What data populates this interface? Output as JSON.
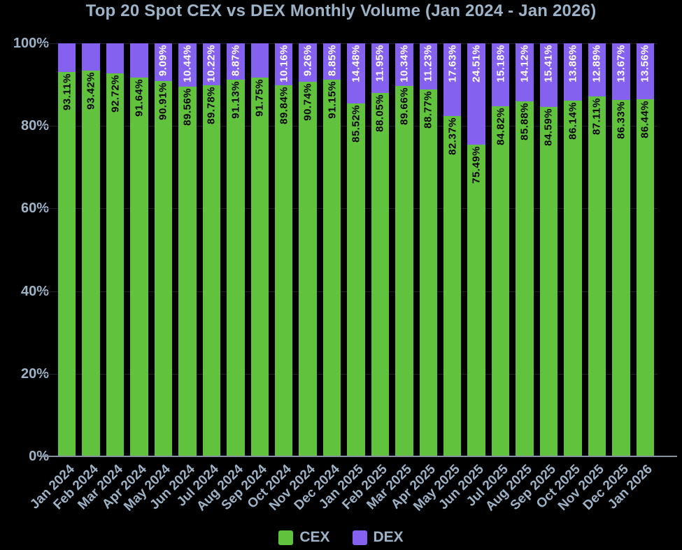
{
  "colors": {
    "background": "#000000",
    "cex_green": "#61c23e",
    "dex_purple": "#8561f0",
    "text": "#9db3c8",
    "axis_line": "#83929c",
    "grid_line": "#202325",
    "cex_label_text": "#000000",
    "dex_label_text": "#ffffff"
  },
  "chart_data": {
    "type": "bar",
    "stacked": true,
    "title": "Top 20 Spot CEX vs DEX Monthly Volume (Jan 2024 - Jan 2026)",
    "xlabel": "",
    "ylabel": "",
    "ylim": [
      0,
      100
    ],
    "ytick_labels": [
      "0%",
      "20%",
      "40%",
      "60%",
      "80%",
      "100%"
    ],
    "gridline_values": [
      20,
      40,
      60,
      80,
      100
    ],
    "legend_position": "bottom",
    "categories": [
      "Jan 2024",
      "Feb 2024",
      "Mar 2024",
      "Apr 2024",
      "May 2024",
      "Jun 2024",
      "Jul 2024",
      "Aug 2024",
      "Sep 2024",
      "Oct 2024",
      "Nov 2024",
      "Dec 2024",
      "Jan 2025",
      "Feb 2025",
      "Mar 2025",
      "Apr 2025",
      "May 2025",
      "Jun 2025",
      "Jul 2025",
      "Aug 2025",
      "Sep 2025",
      "Oct 2025",
      "Nov 2025",
      "Dec 2025",
      "Jan 2026"
    ],
    "series": [
      {
        "name": "CEX",
        "color": "#61c23e",
        "values": [
          93.11,
          93.42,
          92.72,
          91.64,
          90.91,
          89.56,
          89.78,
          91.13,
          91.75,
          89.84,
          90.74,
          91.15,
          85.52,
          88.05,
          89.66,
          88.77,
          82.37,
          75.49,
          84.82,
          85.88,
          84.59,
          86.14,
          87.11,
          86.33,
          86.44
        ],
        "labels": [
          "93.11%",
          "93.42%",
          "92.72%",
          "91.64%",
          "90.91%",
          "89.56%",
          "89.78%",
          "91.13%",
          "91.75%",
          "89.84%",
          "90.74%",
          "91.15%",
          "85.52%",
          "88.05%",
          "89.66%",
          "88.77%",
          "82.37%",
          "75.49%",
          "84.82%",
          "85.88%",
          "84.59%",
          "86.14%",
          "87.11%",
          "86.33%",
          "86.44%"
        ]
      },
      {
        "name": "DEX",
        "color": "#8561f0",
        "values": [
          6.89,
          6.58,
          7.28,
          8.36,
          9.09,
          10.44,
          10.22,
          8.87,
          8.25,
          10.16,
          9.26,
          8.85,
          14.48,
          11.95,
          10.34,
          11.23,
          17.63,
          24.51,
          15.18,
          14.12,
          15.41,
          13.86,
          12.89,
          13.67,
          13.56
        ],
        "labels": [
          "",
          "",
          "",
          "",
          "9.09%",
          "10.44%",
          "10.22%",
          "8.87%",
          "",
          "10.16%",
          "9.26%",
          "8.85%",
          "14.48%",
          "11.95%",
          "10.34%",
          "11.23%",
          "17.63%",
          "24.51%",
          "15.18%",
          "14.12%",
          "15.41%",
          "13.86%",
          "12.89%",
          "13.67%",
          "13.56%"
        ]
      }
    ]
  }
}
